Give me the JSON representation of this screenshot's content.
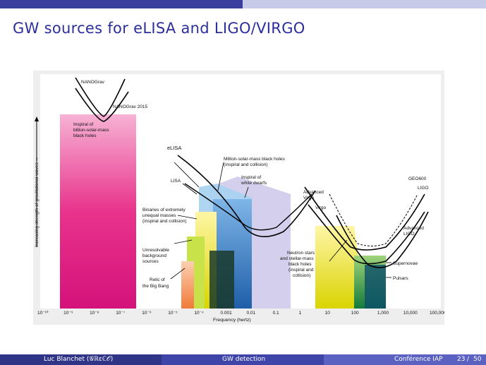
{
  "slide": {
    "title": "GW sources for eLISA and LIGO/VIRGO"
  },
  "figure": {
    "y_axis_label": "Increasing strength of gravitational waves →",
    "x_axis_label": "Frequency (hertz)",
    "x_ticks": [
      "10⁻¹⁰",
      "10⁻⁹",
      "10⁻⁸",
      "10⁻⁷",
      "10⁻⁶",
      "10⁻⁵",
      "10⁻⁴",
      "0.001",
      "0.01",
      "0.1",
      "1",
      "10",
      "100",
      "1,000",
      "10,000",
      "100,000"
    ],
    "labels": {
      "nanograv": "NANOGrav",
      "nanograv2015": "NANOGrav 2015",
      "billion_bh": [
        "Inspiral of",
        "billion-solar-mass",
        "black holes"
      ],
      "elisa": "eLISA",
      "lisa": "LISA",
      "million_bh": [
        "Million-solar-mass black holes",
        "(inspiral and collision)"
      ],
      "white_dwarfs": [
        "Inspiral of",
        "white dwarfs"
      ],
      "binaries": [
        "Binaries of extremely",
        "unequal masses",
        "(inspiral and collision)"
      ],
      "unresolvable": [
        "Unresolvable",
        "background",
        "sources"
      ],
      "relic": [
        "Relic of",
        "the Big Bang"
      ],
      "advanced_virgo": [
        "Advanced",
        "Virgo"
      ],
      "virgo": "Virgo",
      "geo600": "GEO600",
      "ligo": "LIGO",
      "advanced_ligo": [
        "Advanced",
        "LIGO"
      ],
      "neutron": [
        "Neutron stars",
        "and stellar-mass",
        "black holes",
        "(inspiral and",
        "collision)"
      ],
      "supernovae": "Supernovae",
      "pulsars": "Pulsars"
    }
  },
  "footer": {
    "author": "Luc Blanchet (𝒢ℝεℂ𝒪)",
    "talk": "GW detection",
    "conference": "Conférence IAP",
    "page": "23",
    "total": "50",
    "separator": "/"
  },
  "colors": {
    "title": "#2b2f9a",
    "magenta": "#e8338c",
    "background_band": "#f0f0f0"
  }
}
